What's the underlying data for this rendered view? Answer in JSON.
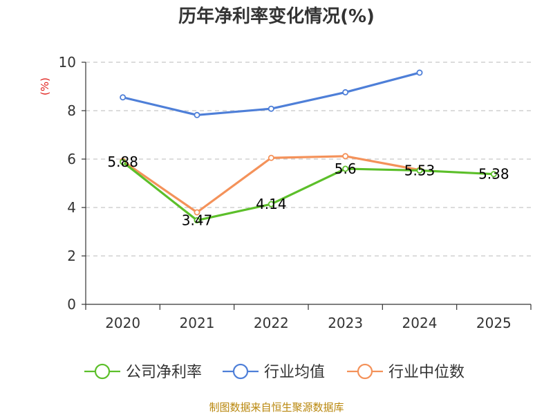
{
  "chart_data": {
    "type": "line",
    "title": "历年净利率变化情况(%)",
    "ylabel": "(%)",
    "categories": [
      "2020",
      "2021",
      "2022",
      "2023",
      "2024",
      "2025"
    ],
    "ylim": [
      0,
      10
    ],
    "yticks": [
      0,
      2,
      4,
      6,
      8,
      10
    ],
    "grid": true,
    "legend_position": "bottom",
    "series": [
      {
        "name": "公司净利率",
        "color": "#5cbf2a",
        "values": [
          5.88,
          3.47,
          4.14,
          5.6,
          5.53,
          5.38
        ],
        "labels": [
          "5.88",
          "3.47",
          "4.14",
          "5.6",
          "5.53",
          "5.38"
        ]
      },
      {
        "name": "行业均值",
        "color": "#4e7fd8",
        "values": [
          8.55,
          7.82,
          8.08,
          8.76,
          9.57,
          null
        ]
      },
      {
        "name": "行业中位数",
        "color": "#f4925a",
        "values": [
          5.92,
          3.8,
          6.05,
          6.12,
          5.55,
          null
        ]
      }
    ],
    "source": "制图数据来自恒生聚源数据库"
  }
}
